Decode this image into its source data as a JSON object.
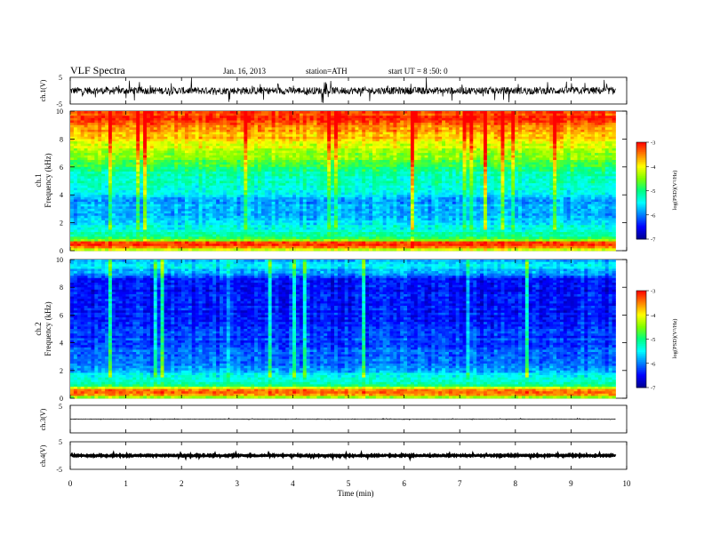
{
  "header": {
    "title": "VLF  Spectra",
    "date": "Jan. 16, 2013",
    "station": "station=ATH",
    "start": "start  UT  =    8 :50: 0"
  },
  "chart_data": [
    {
      "type": "line",
      "panel": "ch1-waveform",
      "ylabel": "ch.1(V)",
      "ylim": [
        -5,
        5
      ],
      "y_ticks": [
        "5",
        "-5"
      ],
      "xlim": [
        0,
        10
      ],
      "trace_extent": [
        0,
        9.8
      ],
      "baseline": 0,
      "noise_amplitude": 2.5,
      "color": "#000000"
    },
    {
      "type": "heatmap",
      "panel": "ch1-spectrogram",
      "ylabel_top": "ch.1",
      "ylabel": "Frequency  (kHz)",
      "ylim": [
        0,
        10
      ],
      "y_ticks": [
        "0",
        "2",
        "4",
        "6",
        "8",
        "10"
      ],
      "xlim": [
        0,
        10
      ],
      "data_extent": [
        0,
        9.8
      ],
      "log_psd_profile": [
        [
          0,
          -4.4
        ],
        [
          0.3,
          -3.2
        ],
        [
          0.6,
          -3.3
        ],
        [
          0.8,
          -4.9
        ],
        [
          1.5,
          -5.4
        ],
        [
          2.5,
          -5.7
        ],
        [
          3.5,
          -5.8
        ],
        [
          4.5,
          -5.4
        ],
        [
          5.5,
          -5.1
        ],
        [
          6.5,
          -4.6
        ],
        [
          7.5,
          -4.1
        ],
        [
          8.5,
          -3.6
        ],
        [
          9.5,
          -3.2
        ],
        [
          10,
          -3.2
        ]
      ],
      "colorbar": {
        "label": "log(PSD)(V²/Hz)",
        "ticks": [
          "-3",
          "-4",
          "-5",
          "-6",
          "-7"
        ],
        "range": [
          -7,
          -3
        ]
      }
    },
    {
      "type": "heatmap",
      "panel": "ch2-spectrogram",
      "ylabel_top": "ch.2",
      "ylabel": "Frequency  (kHz)",
      "ylim": [
        0,
        10
      ],
      "y_ticks": [
        "0",
        "2",
        "4",
        "6",
        "8",
        "10"
      ],
      "xlim": [
        0,
        10
      ],
      "data_extent": [
        0,
        9.8
      ],
      "log_psd_profile": [
        [
          0,
          -4.8
        ],
        [
          0.3,
          -3.3
        ],
        [
          0.6,
          -3.5
        ],
        [
          0.9,
          -5.0
        ],
        [
          1.5,
          -5.5
        ],
        [
          2.5,
          -6.0
        ],
        [
          3.5,
          -6.2
        ],
        [
          4.5,
          -6.3
        ],
        [
          5.5,
          -6.4
        ],
        [
          6.5,
          -6.5
        ],
        [
          7.5,
          -6.5
        ],
        [
          8.5,
          -6.4
        ],
        [
          9.5,
          -5.6
        ],
        [
          10,
          -5.8
        ]
      ],
      "colorbar": {
        "label": "log(PSD)(V²/Hz)",
        "ticks": [
          "-3",
          "-4",
          "-5",
          "-6",
          "-7"
        ],
        "range": [
          -7,
          -3
        ]
      }
    },
    {
      "type": "line",
      "panel": "ch3-waveform",
      "ylabel": "ch.3(V)",
      "ylim": [
        -5,
        5
      ],
      "y_ticks": [
        "5"
      ],
      "xlim": [
        0,
        10
      ],
      "trace_extent": [
        0,
        9.8
      ],
      "baseline": 0,
      "noise_amplitude": 0.15,
      "color": "#000000"
    },
    {
      "type": "line",
      "panel": "ch4-waveform",
      "ylabel": "ch.4(V)",
      "ylim": [
        -5,
        5
      ],
      "y_ticks": [
        "5",
        "-5"
      ],
      "xlim": [
        0,
        10
      ],
      "trace_extent": [
        0,
        9.8
      ],
      "baseline": 0,
      "noise_amplitude": 0.4,
      "color": "#000000"
    }
  ],
  "x_axis": {
    "label": "Time  (min)",
    "ticks": [
      "0",
      "1",
      "2",
      "3",
      "4",
      "5",
      "6",
      "7",
      "8",
      "9",
      "10"
    ],
    "range": [
      0,
      10
    ]
  },
  "colormap": [
    "#000090",
    "#0000ff",
    "#0080ff",
    "#00ffff",
    "#00ff80",
    "#80ff00",
    "#ffff00",
    "#ff8000",
    "#ff0000",
    "#ffffff"
  ]
}
